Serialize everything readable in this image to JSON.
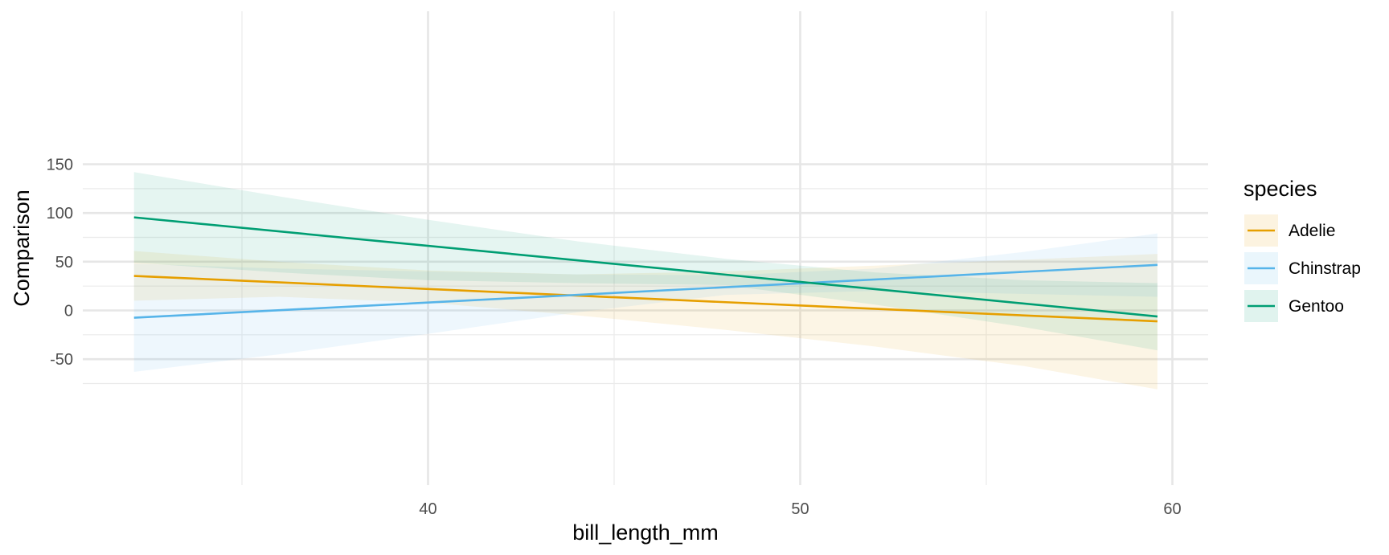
{
  "chart_data": {
    "type": "line",
    "title": "",
    "xlabel": "bill_length_mm",
    "ylabel": "Comparison",
    "xlim": [
      31.2,
      60.8
    ],
    "ylim": [
      -84,
      155
    ],
    "x_ticks": [
      40,
      50,
      60
    ],
    "x_tick_labels": [
      "40",
      "50",
      "60"
    ],
    "x_minor_ticks": [
      35,
      45,
      55
    ],
    "y_ticks": [
      -50,
      0,
      50,
      100,
      150
    ],
    "y_tick_labels": [
      "-50",
      "0",
      "50",
      "100",
      "150"
    ],
    "y_minor_ticks": [
      -75,
      -25,
      25,
      75,
      125
    ],
    "grid": true,
    "legend": {
      "title": "species",
      "position": "right"
    },
    "series": [
      {
        "name": "Adelie",
        "color": "#E69F00",
        "x": [
          32.1,
          59.6
        ],
        "y": [
          35.4,
          -11.2
        ],
        "band": {
          "x": [
            32.1,
            36,
            40,
            44,
            48,
            52,
            56,
            59.6
          ],
          "lower": [
            10,
            14,
            8,
            -5,
            -20,
            -37,
            -57,
            -81
          ],
          "upper": [
            61,
            50,
            41,
            37,
            40,
            46,
            52,
            58
          ]
        }
      },
      {
        "name": "Chinstrap",
        "color": "#56B4E9",
        "x": [
          32.1,
          59.6
        ],
        "y": [
          -7.5,
          46.7
        ],
        "band": {
          "x": [
            32.1,
            36,
            40,
            44,
            48,
            52,
            56,
            59.6
          ],
          "lower": [
            -63,
            -45,
            -24,
            -2,
            16,
            20,
            17,
            14
          ],
          "upper": [
            48,
            43,
            40,
            37,
            36,
            43,
            60,
            79
          ]
        }
      },
      {
        "name": "Gentoo",
        "color": "#009E73",
        "x": [
          32.1,
          59.6
        ],
        "y": [
          95.5,
          -6.2
        ],
        "band": {
          "x": [
            32.1,
            36,
            40,
            44,
            48,
            52,
            56,
            59.6
          ],
          "lower": [
            49,
            39,
            31,
            28,
            26,
            6,
            -17,
            -41
          ],
          "upper": [
            142,
            117,
            93,
            71,
            53,
            39,
            31,
            28
          ]
        }
      }
    ]
  }
}
